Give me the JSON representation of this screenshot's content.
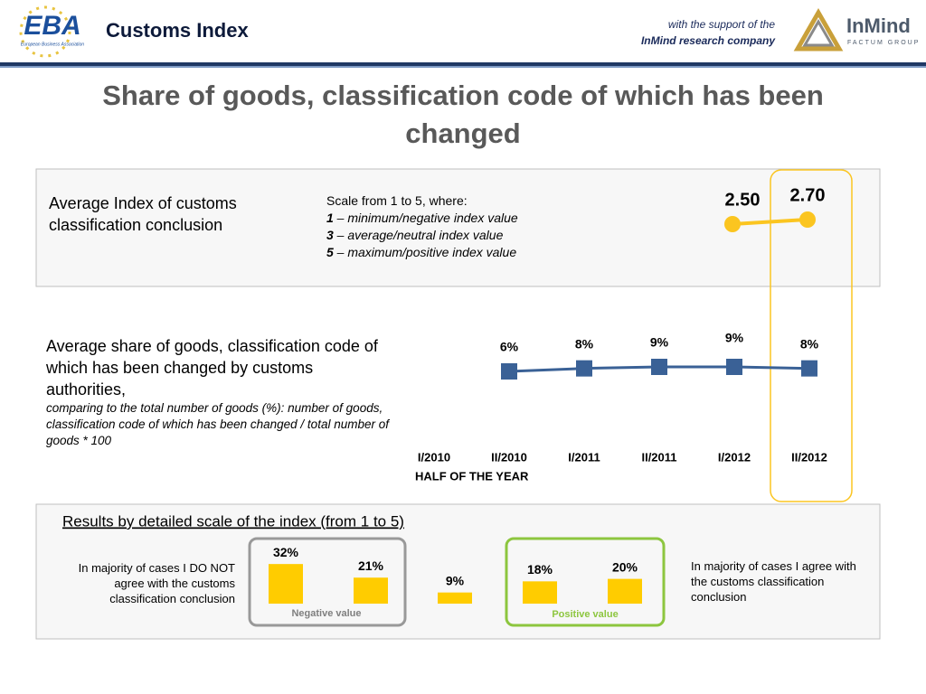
{
  "header": {
    "logo": "EBA",
    "logo_subtitle": "European Business Association",
    "title": "Customs Index",
    "support": "with the support of the",
    "company": "InMind research company",
    "partner_logo": "InMind",
    "partner_subtitle": "FACTUM GROUP"
  },
  "title": "Share of goods, classification code of which has been changed",
  "chart_data": [
    {
      "type": "line",
      "title": "Average Index of customs classification conclusion",
      "scale_note": "Scale from 1 to 5, where:",
      "scale_items": [
        {
          "key": "1",
          "text": " – minimum/negative index value"
        },
        {
          "key": "3",
          "text": " – average/neutral index value"
        },
        {
          "key": "5",
          "text": " – maximum/positive index value"
        }
      ],
      "values": [
        2.5,
        2.7
      ],
      "value_labels": [
        "2.50",
        "2.70"
      ],
      "color": "#fbc520"
    },
    {
      "type": "line",
      "title": "Average share of goods, classification code of which has been changed by customs authorities,",
      "subtitle": "comparing to the total number of goods (%): number of goods, classification code of which has been changed / total number of goods * 100",
      "x_label": "HALF OF THE YEAR",
      "categories": [
        "I/2010",
        "II/2010",
        "I/2011",
        "II/2011",
        "I/2012",
        "II/2012"
      ],
      "values": [
        null,
        6,
        8,
        9,
        9,
        8
      ],
      "value_labels": [
        null,
        "6%",
        "8%",
        "9%",
        "9%",
        "8%"
      ],
      "color": "#3a6196"
    },
    {
      "type": "bar",
      "title": "Results by detailed scale of the index (from 1 to 5)",
      "values": [
        32,
        21,
        9,
        18,
        20
      ],
      "value_labels": [
        "32%",
        "21%",
        "9%",
        "18%",
        "20%"
      ],
      "color": "#ffcc00",
      "negative_group": "Negative value",
      "positive_group": "Positive value",
      "negative_note": "In majority of cases I DO NOT agree with the customs classification conclusion",
      "positive_note": "In majority of cases I agree with the customs classification conclusion"
    }
  ]
}
